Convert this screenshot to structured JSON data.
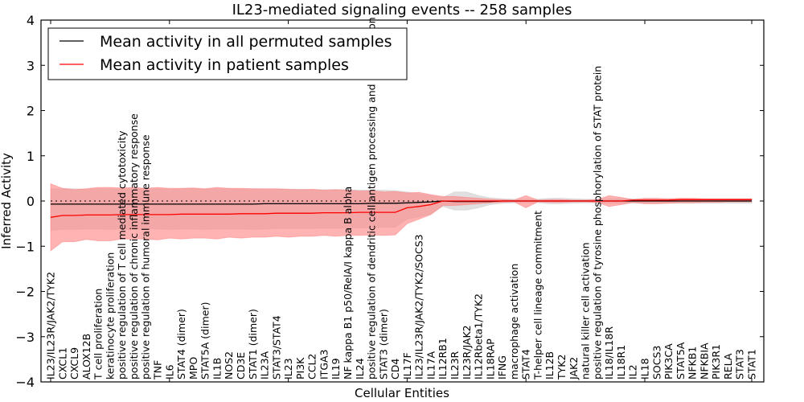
{
  "chart_data": {
    "type": "line",
    "title": "IL23-mediated signaling events -- 258 samples",
    "xlabel": "Cellular Entities",
    "ylabel": "Inferred Activity",
    "ylim": [
      -4,
      4
    ],
    "yticks": [
      4,
      3,
      2,
      1,
      0,
      -1,
      -2,
      -3,
      -4
    ],
    "ytick_labels": [
      "4",
      "3",
      "2",
      "1",
      "0",
      "−1",
      "−2",
      "−3",
      "−4"
    ],
    "reference_line": 0,
    "legend": {
      "placement": "top-left",
      "entries": [
        {
          "label": "Mean activity in all permuted samples",
          "color": "#000000"
        },
        {
          "label": "Mean activity in patient samples",
          "color": "#ff0000"
        }
      ]
    },
    "colors": {
      "permuted_line": "#000000",
      "patient_line": "#ff0000",
      "permuted_band": "#cccccc",
      "patient_band": "#ff8080"
    },
    "categories": [
      "IL23/IL23R/JAK2/TYK2",
      "CXCL1",
      "CXCL9",
      "ALOX12B",
      "T cell proliferation",
      "keratinocyte proliferation",
      "positive regulation of T cell mediated cytotoxicity",
      "positive regulation of chronic inflammatory response",
      "positive regulation of humoral immune response",
      "TNF",
      "IL6",
      "STAT4 (dimer)",
      "MPO",
      "STAT5A (dimer)",
      "IL1B",
      "NOS2",
      "CD3E",
      "STAT1 (dimer)",
      "IL23A",
      "STAT3/STAT4",
      "IL23",
      "PI3K",
      "CCL2",
      "ITGA3",
      "IL19",
      "NF kappa B1 p50/RelA/I kappa B alpha",
      "IL24",
      "positive regulation of dendritic cell antigen processing and presentation",
      "STAT3 (dimer)",
      "CD4",
      "IL17F",
      "IL23/IL23R/JAK2/TYK2/SOCS3",
      "IL17A",
      "IL12RB1",
      "IL23R",
      "IL23R/JAK2",
      "IL12Rbeta1/TYK2",
      "IL18RAP",
      "IFNG",
      "macrophage activation",
      "STAT4",
      "T-helper cell lineage commitment",
      "IL12B",
      "TYK2",
      "JAK2",
      "natural killer cell activation",
      "positive regulation of tyrosine phosphorylation of STAT protein",
      "IL18/IL18R",
      "IL18R1",
      "IL2",
      "IL18",
      "SOCS3",
      "PIK3CA",
      "STAT5A",
      "NFKB1",
      "NFKBIA",
      "PIK3R1",
      "RELA",
      "STAT3",
      "STAT1"
    ],
    "series": [
      {
        "name": "Mean activity in all permuted samples",
        "values": [
          -0.07,
          -0.07,
          -0.07,
          -0.07,
          -0.07,
          -0.07,
          -0.07,
          -0.07,
          -0.07,
          -0.07,
          -0.07,
          -0.07,
          -0.07,
          -0.07,
          -0.07,
          -0.07,
          -0.07,
          -0.07,
          -0.06,
          -0.06,
          -0.06,
          -0.06,
          -0.06,
          -0.06,
          -0.06,
          -0.06,
          -0.06,
          -0.05,
          -0.05,
          -0.05,
          -0.04,
          -0.03,
          -0.02,
          0.0,
          -0.01,
          -0.01,
          -0.01,
          -0.01,
          0.0,
          0.0,
          0.0,
          0.0,
          0.0,
          0.0,
          0.0,
          0.0,
          0.0,
          0.0,
          0.0,
          0.0,
          0.0,
          0.0,
          0.0,
          0.0,
          0.0,
          0.0,
          0.0,
          0.0,
          0.0,
          0.0
        ],
        "lower": [
          -0.65,
          -0.63,
          -0.63,
          -0.62,
          -0.62,
          -0.63,
          -0.62,
          -0.63,
          -0.62,
          -0.62,
          -0.63,
          -0.62,
          -0.62,
          -0.63,
          -0.62,
          -0.62,
          -0.62,
          -0.63,
          -0.62,
          -0.61,
          -0.61,
          -0.61,
          -0.61,
          -0.6,
          -0.6,
          -0.6,
          -0.59,
          -0.59,
          -0.58,
          -0.58,
          -0.4,
          -0.35,
          -0.28,
          -0.12,
          -0.2,
          -0.2,
          -0.15,
          -0.08,
          -0.05,
          -0.04,
          -0.04,
          -0.04,
          -0.06,
          -0.06,
          -0.05,
          -0.04,
          -0.04,
          -0.05,
          -0.05,
          -0.05,
          -0.05,
          -0.05,
          -0.05,
          -0.05,
          -0.05,
          -0.05,
          -0.05,
          -0.05,
          -0.05,
          -0.05
        ],
        "upper": [
          0.27,
          0.27,
          0.27,
          0.26,
          0.27,
          0.27,
          0.26,
          0.27,
          0.27,
          0.27,
          0.26,
          0.27,
          0.27,
          0.26,
          0.27,
          0.27,
          0.26,
          0.27,
          0.26,
          0.26,
          0.26,
          0.26,
          0.25,
          0.25,
          0.25,
          0.25,
          0.24,
          0.24,
          0.24,
          0.23,
          0.2,
          0.16,
          0.12,
          0.08,
          0.2,
          0.2,
          0.12,
          0.07,
          0.05,
          0.04,
          0.04,
          0.04,
          0.06,
          0.06,
          0.05,
          0.04,
          0.04,
          0.05,
          0.05,
          0.05,
          0.05,
          0.05,
          0.05,
          0.05,
          0.05,
          0.05,
          0.05,
          0.05,
          0.05,
          0.05
        ]
      },
      {
        "name": "Mean activity in patient samples",
        "values": [
          -0.36,
          -0.32,
          -0.32,
          -0.31,
          -0.31,
          -0.31,
          -0.3,
          -0.3,
          -0.3,
          -0.3,
          -0.3,
          -0.29,
          -0.29,
          -0.29,
          -0.29,
          -0.29,
          -0.28,
          -0.28,
          -0.28,
          -0.27,
          -0.27,
          -0.27,
          -0.27,
          -0.26,
          -0.26,
          -0.26,
          -0.25,
          -0.25,
          -0.25,
          -0.25,
          -0.15,
          -0.12,
          -0.08,
          0.0,
          0.0,
          0.0,
          0.0,
          0.0,
          0.0,
          0.0,
          0.0,
          0.0,
          0.0,
          0.0,
          0.0,
          0.0,
          0.0,
          0.0,
          0.0,
          0.02,
          0.02,
          0.02,
          0.02,
          0.03,
          0.03,
          0.03,
          0.03,
          0.03,
          0.03,
          0.03
        ],
        "lower": [
          -1.1,
          -0.9,
          -0.9,
          -0.85,
          -0.88,
          -0.88,
          -0.84,
          -0.84,
          -0.84,
          -0.86,
          -0.82,
          -0.84,
          -0.82,
          -0.82,
          -0.84,
          -0.8,
          -0.82,
          -0.8,
          -0.8,
          -0.78,
          -0.8,
          -0.78,
          -0.78,
          -0.76,
          -0.78,
          -0.76,
          -0.76,
          -0.75,
          -0.76,
          -0.75,
          -0.5,
          -0.4,
          -0.3,
          -0.1,
          -0.1,
          -0.08,
          -0.06,
          -0.04,
          -0.03,
          -0.02,
          -0.15,
          -0.02,
          -0.03,
          -0.03,
          -0.02,
          -0.02,
          -0.03,
          -0.12,
          -0.08,
          -0.03,
          -0.06,
          -0.06,
          -0.05,
          -0.04,
          -0.04,
          -0.03,
          -0.03,
          -0.02,
          -0.02,
          -0.02
        ],
        "upper": [
          0.38,
          0.28,
          0.25,
          0.27,
          0.3,
          0.3,
          0.29,
          0.3,
          0.28,
          0.3,
          0.28,
          0.28,
          0.29,
          0.27,
          0.3,
          0.28,
          0.28,
          0.27,
          0.27,
          0.27,
          0.26,
          0.25,
          0.26,
          0.24,
          0.25,
          0.24,
          0.22,
          0.23,
          0.2,
          0.21,
          0.18,
          0.19,
          0.14,
          0.1,
          0.1,
          0.08,
          0.06,
          0.04,
          0.03,
          0.02,
          0.12,
          0.02,
          0.03,
          0.03,
          0.02,
          0.02,
          0.03,
          0.12,
          0.08,
          0.03,
          0.06,
          0.06,
          0.05,
          0.06,
          0.06,
          0.05,
          0.05,
          0.05,
          0.05,
          0.05
        ]
      }
    ]
  }
}
